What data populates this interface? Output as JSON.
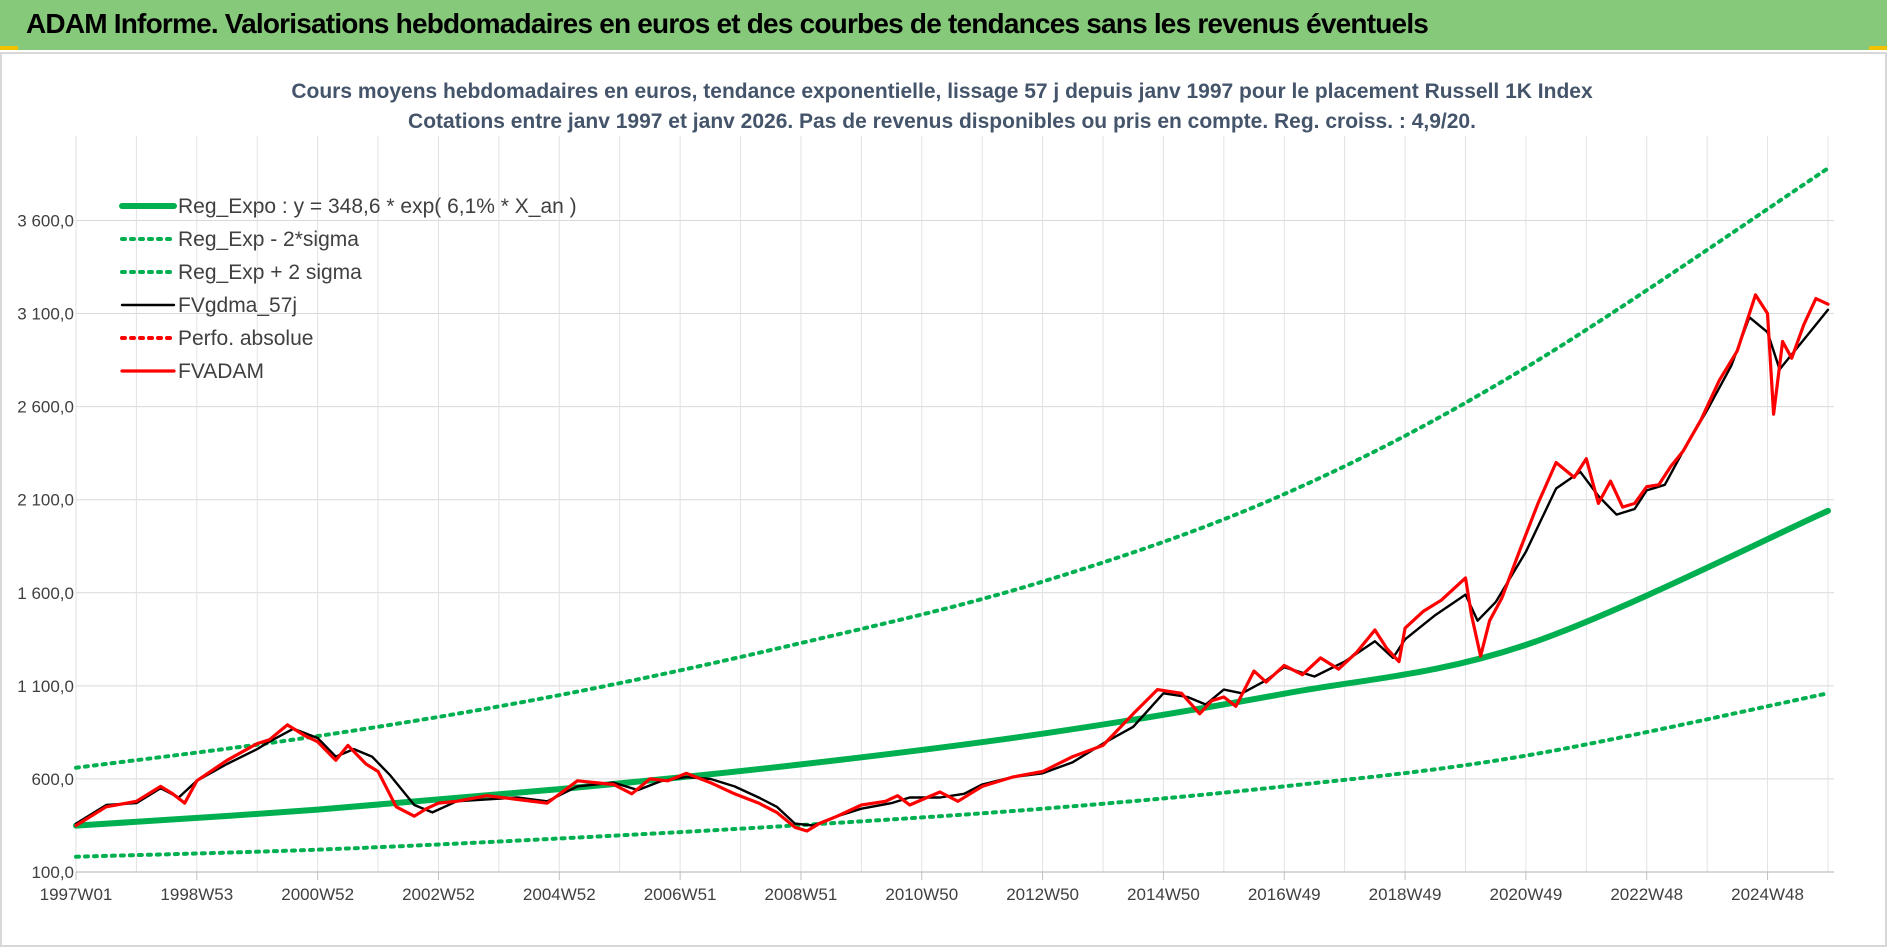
{
  "banner": {
    "title": "ADAM Informe. Valorisations hebdomadaires en euros et des courbes de tendances sans les revenus éventuels",
    "background": "#87c97b",
    "accent": "#f2c200"
  },
  "chart_data": {
    "type": "line",
    "title": "Cours moyens hebdomadaires en euros, tendance exponentielle, lissage 57 j depuis janv 1997 pour le placement Russell 1K Index",
    "subtitle": "Cotations entre janv 1997 et janv 2026. Pas de revenus disponibles ou pris en compte. Reg. croiss. : 4,9/20.",
    "xlabel": "",
    "ylabel": "",
    "x_range": [
      1997.0,
      2026.1
    ],
    "ylim": [
      100,
      4000
    ],
    "y_ticks": [
      {
        "value": 100,
        "label": "100,0"
      },
      {
        "value": 600,
        "label": "600,0"
      },
      {
        "value": 1100,
        "label": "1 100,0"
      },
      {
        "value": 1600,
        "label": "1 600,0"
      },
      {
        "value": 2100,
        "label": "2 100,0"
      },
      {
        "value": 2600,
        "label": "2 600,0"
      },
      {
        "value": 3100,
        "label": "3 100,0"
      },
      {
        "value": 3600,
        "label": "3 600,0"
      }
    ],
    "x_ticks": [
      {
        "value": 1997.0,
        "label": "1997W01"
      },
      {
        "value": 1999.0,
        "label": "1998W53"
      },
      {
        "value": 2001.0,
        "label": "2000W52"
      },
      {
        "value": 2003.0,
        "label": "2002W52"
      },
      {
        "value": 2005.0,
        "label": "2004W52"
      },
      {
        "value": 2007.0,
        "label": "2006W51"
      },
      {
        "value": 2009.0,
        "label": "2008W51"
      },
      {
        "value": 2011.0,
        "label": "2010W50"
      },
      {
        "value": 2013.0,
        "label": "2012W50"
      },
      {
        "value": 2015.0,
        "label": "2014W50"
      },
      {
        "value": 2017.0,
        "label": "2016W49"
      },
      {
        "value": 2019.0,
        "label": "2018W49"
      },
      {
        "value": 2021.0,
        "label": "2020W49"
      },
      {
        "value": 2023.0,
        "label": "2022W48"
      },
      {
        "value": 2025.0,
        "label": "2024W48"
      }
    ],
    "grid": true,
    "legend_placement": "top-left",
    "series": [
      {
        "name": "Reg_Expo : y = 348,6 * exp( 6,1% *  X_an )",
        "color": "#00b050",
        "style": "solid",
        "x": [
          1997.0,
          2001.0,
          2005.0,
          2009.0,
          2013.0,
          2017.0,
          2021.0,
          2026.0
        ],
        "values": [
          349,
          435,
          545,
          678,
          843,
          1058,
          1320,
          2040
        ]
      },
      {
        "name": "Reg_Exp - 2*sigma",
        "color": "#00b050",
        "style": "dotted",
        "x": [
          1997.0,
          2001.0,
          2005.0,
          2009.0,
          2013.0,
          2017.0,
          2021.0,
          2026.0
        ],
        "values": [
          182,
          220,
          280,
          352,
          440,
          560,
          725,
          1060
        ]
      },
      {
        "name": "Reg_Exp + 2 sigma",
        "color": "#00b050",
        "style": "dotted",
        "x": [
          1997.0,
          2001.0,
          2005.0,
          2009.0,
          2013.0,
          2017.0,
          2021.0,
          2026.0
        ],
        "values": [
          660,
          830,
          1050,
          1330,
          1660,
          2130,
          2810,
          3880
        ]
      },
      {
        "name": "FVgdma_57j",
        "color": "#000000",
        "style": "solid",
        "x": [
          1997.0,
          1997.5,
          1998.0,
          1998.4,
          1998.7,
          1999.0,
          1999.5,
          2000.0,
          2000.2,
          2000.6,
          2001.0,
          2001.3,
          2001.6,
          2001.9,
          2002.2,
          2002.6,
          2002.9,
          2003.3,
          2003.8,
          2004.3,
          2004.8,
          2005.3,
          2005.9,
          2006.3,
          2006.7,
          2007.1,
          2007.5,
          2007.9,
          2008.3,
          2008.6,
          2008.9,
          2009.2,
          2009.6,
          2010.0,
          2010.5,
          2010.8,
          2011.3,
          2011.7,
          2012.0,
          2012.5,
          2013.0,
          2013.5,
          2014.0,
          2014.5,
          2015.0,
          2015.4,
          2015.7,
          2016.0,
          2016.3,
          2016.7,
          2017.0,
          2017.5,
          2018.0,
          2018.5,
          2018.8,
          2019.0,
          2019.5,
          2020.0,
          2020.2,
          2020.5,
          2021.0,
          2021.5,
          2021.9,
          2022.2,
          2022.5,
          2022.8,
          2023.0,
          2023.3,
          2023.6,
          2024.0,
          2024.4,
          2024.7,
          2025.0,
          2025.2,
          2025.4,
          2025.7,
          2026.0
        ],
        "values": [
          360,
          460,
          470,
          550,
          500,
          590,
          680,
          760,
          800,
          870,
          820,
          720,
          760,
          720,
          620,
          460,
          420,
          480,
          490,
          500,
          480,
          560,
          580,
          540,
          590,
          610,
          600,
          560,
          500,
          450,
          360,
          350,
          400,
          440,
          470,
          500,
          500,
          520,
          570,
          610,
          630,
          690,
          790,
          880,
          1060,
          1040,
          1000,
          1080,
          1060,
          1130,
          1200,
          1150,
          1230,
          1340,
          1250,
          1350,
          1480,
          1590,
          1450,
          1550,
          1820,
          2160,
          2250,
          2120,
          2020,
          2050,
          2150,
          2180,
          2360,
          2580,
          2820,
          3080,
          3000,
          2800,
          2880,
          3000,
          3120
        ]
      },
      {
        "name": "Perfo. absolue",
        "color": "#ff0000",
        "style": "dotted",
        "x": [],
        "values": []
      },
      {
        "name": "FVADAM",
        "color": "#ff0000",
        "style": "solid",
        "x": [
          1997.0,
          1997.5,
          1998.0,
          1998.4,
          1998.6,
          1998.8,
          1999.0,
          1999.5,
          2000.0,
          2000.2,
          2000.5,
          2000.8,
          2001.0,
          2001.3,
          2001.5,
          2001.8,
          2002.0,
          2002.3,
          2002.6,
          2002.8,
          2003.0,
          2003.3,
          2003.8,
          2004.3,
          2004.8,
          2005.3,
          2005.9,
          2006.2,
          2006.5,
          2006.8,
          2007.1,
          2007.5,
          2007.9,
          2008.3,
          2008.6,
          2008.9,
          2009.1,
          2009.3,
          2009.6,
          2010.0,
          2010.4,
          2010.6,
          2010.8,
          2011.3,
          2011.6,
          2011.8,
          2012.0,
          2012.5,
          2013.0,
          2013.5,
          2014.0,
          2014.5,
          2014.9,
          2015.3,
          2015.6,
          2015.8,
          2016.0,
          2016.2,
          2016.5,
          2016.7,
          2017.0,
          2017.3,
          2017.6,
          2017.9,
          2018.2,
          2018.5,
          2018.7,
          2018.9,
          2019.0,
          2019.3,
          2019.6,
          2020.0,
          2020.1,
          2020.25,
          2020.4,
          2020.6,
          2020.9,
          2021.2,
          2021.5,
          2021.8,
          2022.0,
          2022.2,
          2022.4,
          2022.6,
          2022.8,
          2023.0,
          2023.2,
          2023.4,
          2023.6,
          2023.9,
          2024.2,
          2024.5,
          2024.8,
          2025.0,
          2025.1,
          2025.25,
          2025.4,
          2025.6,
          2025.8,
          2026.0
        ],
        "values": [
          350,
          450,
          480,
          560,
          520,
          470,
          590,
          700,
          790,
          810,
          890,
          830,
          800,
          700,
          780,
          680,
          640,
          450,
          400,
          440,
          470,
          480,
          510,
          490,
          470,
          590,
          570,
          520,
          600,
          590,
          630,
          580,
          520,
          470,
          420,
          340,
          320,
          360,
          400,
          460,
          480,
          510,
          460,
          530,
          480,
          520,
          560,
          610,
          640,
          720,
          780,
          950,
          1080,
          1060,
          950,
          1020,
          1040,
          990,
          1180,
          1120,
          1210,
          1160,
          1250,
          1190,
          1280,
          1400,
          1300,
          1230,
          1410,
          1500,
          1560,
          1680,
          1480,
          1260,
          1450,
          1570,
          1830,
          2080,
          2300,
          2220,
          2320,
          2080,
          2200,
          2060,
          2080,
          2170,
          2180,
          2280,
          2360,
          2530,
          2740,
          2900,
          3200,
          3100,
          2560,
          2950,
          2860,
          3040,
          3180,
          3150
        ]
      }
    ]
  }
}
